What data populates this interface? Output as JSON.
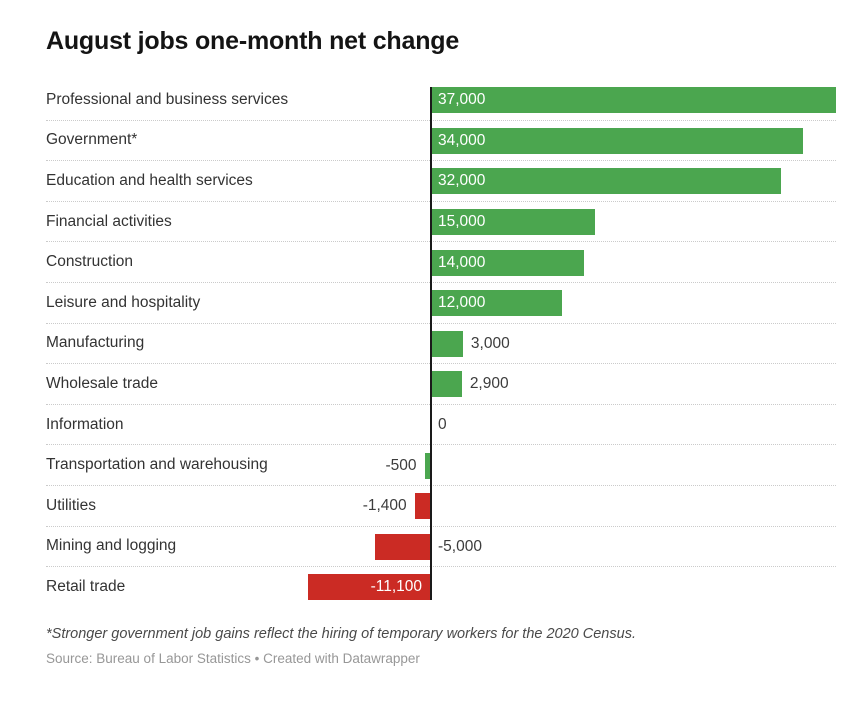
{
  "title": "August jobs one-month net change",
  "footnote": "*Stronger government job gains reflect the hiring of temporary workers for the 2020 Census.",
  "source_line": "Source: Bureau of Labor Statistics • Created with Datawrapper",
  "colors": {
    "positive_bar": "#4ba64f",
    "negative_bar": "#cb2b24",
    "axis_line": "#1a1a1a",
    "row_separator": "#cbcbcb",
    "label_dark": "#3c3c3c",
    "label_light": "#ffffff",
    "category_text": "#333333",
    "title_text": "#141414",
    "footnote_text": "#4a4a4a",
    "source_text": "#979797"
  },
  "chart_data": {
    "type": "bar",
    "orientation": "horizontal",
    "title": "August jobs one-month net change",
    "xlabel": "",
    "ylabel": "",
    "xlim": [
      -11100,
      37000
    ],
    "grid": "dotted-row-separators",
    "legend": "none",
    "categories": [
      "Professional and business services",
      "Government*",
      "Education and health services",
      "Financial activities",
      "Construction",
      "Leisure and hospitality",
      "Manufacturing",
      "Wholesale trade",
      "Information",
      "Transportation and warehousing",
      "Utilities",
      "Mining and logging",
      "Retail trade"
    ],
    "values": [
      37000,
      34000,
      32000,
      15000,
      14000,
      12000,
      3000,
      2900,
      0,
      -500,
      -1400,
      -5000,
      -11100
    ],
    "display_values": [
      "37,000",
      "34,000",
      "32,000",
      "15,000",
      "14,000",
      "12,000",
      "3,000",
      "2,900",
      "0",
      "-500",
      "-1,400",
      "-5,000",
      "-11,100"
    ],
    "bar_colors": [
      "positive",
      "positive",
      "positive",
      "positive",
      "positive",
      "positive",
      "positive",
      "positive",
      "none",
      "positive",
      "negative",
      "negative",
      "negative"
    ],
    "value_label_placement": [
      "inside-start",
      "inside-start",
      "inside-start",
      "inside-start",
      "inside-start",
      "inside-start",
      "after-bar",
      "after-bar",
      "right-of-axis",
      "before-bar",
      "before-bar",
      "right-of-axis",
      "inside-end"
    ]
  }
}
